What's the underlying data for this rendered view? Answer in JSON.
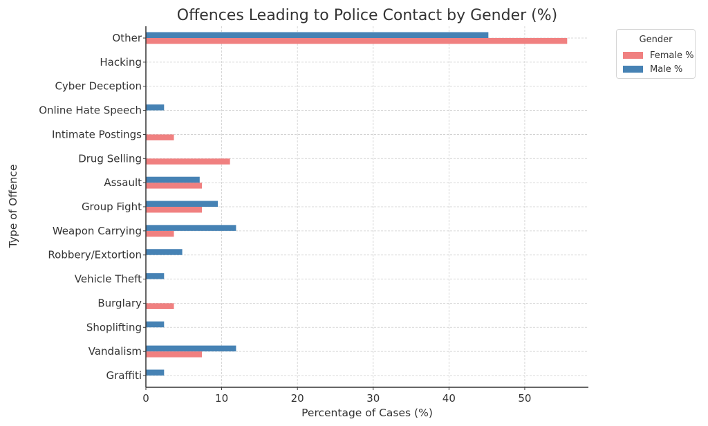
{
  "chart_data": {
    "type": "bar",
    "orientation": "horizontal",
    "title": "Offences Leading to Police Contact by Gender (%)",
    "xlabel": "Percentage of Cases (%)",
    "ylabel": "Type of Offence",
    "xlim": [
      0,
      58.4
    ],
    "xticks": [
      0,
      10,
      20,
      30,
      40,
      50
    ],
    "grid": true,
    "categories": [
      "Graffiti",
      "Vandalism",
      "Shoplifting",
      "Burglary",
      "Vehicle Theft",
      "Robbery/Extortion",
      "Weapon Carrying",
      "Group Fight",
      "Assault",
      "Drug Selling",
      "Intimate Postings",
      "Online Hate Speech",
      "Cyber Deception",
      "Hacking",
      "Other"
    ],
    "series": [
      {
        "name": "Female %",
        "color": "#f08080",
        "values": [
          0,
          7.4,
          0,
          3.7,
          0,
          0,
          3.7,
          7.4,
          7.4,
          11.1,
          3.7,
          0,
          0,
          0,
          55.6
        ]
      },
      {
        "name": "Male %",
        "color": "#4682b4",
        "values": [
          2.4,
          11.9,
          2.4,
          0,
          2.4,
          4.8,
          11.9,
          9.5,
          7.1,
          0,
          0,
          2.4,
          0,
          0,
          45.2
        ]
      }
    ],
    "legend": {
      "title": "Gender",
      "placement": "outside-top-right"
    }
  }
}
